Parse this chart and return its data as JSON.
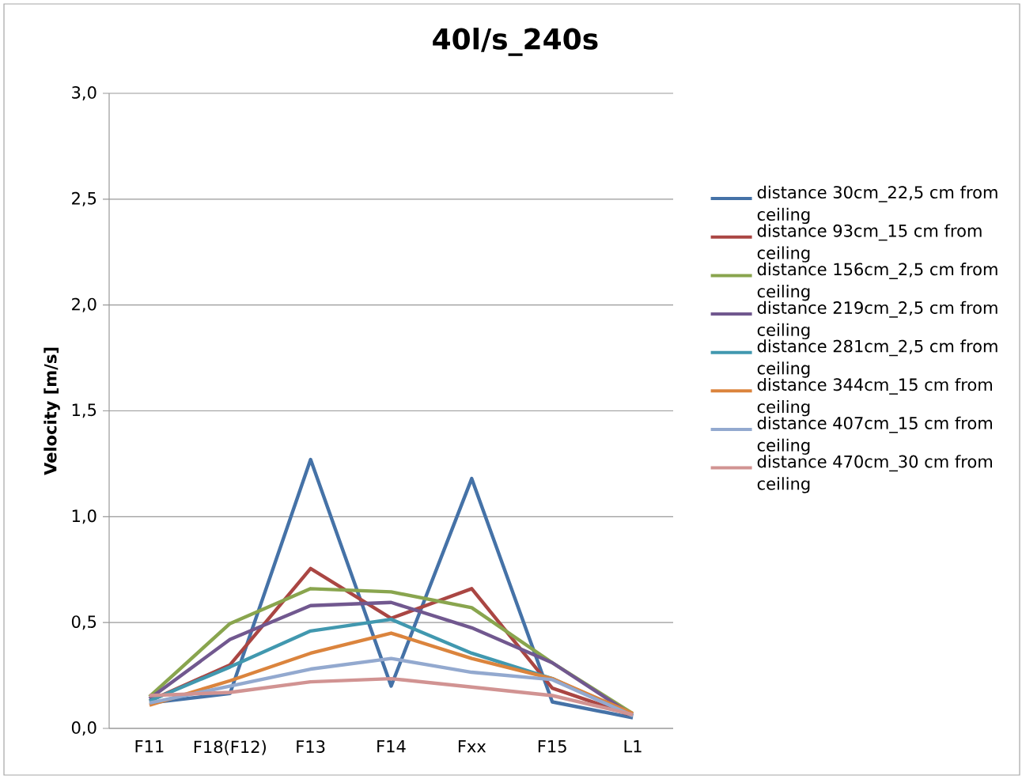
{
  "chart_data": {
    "type": "line",
    "title": "40l/s_240s",
    "ylabel": "Velocity [m/s]",
    "categories": [
      "F11",
      "F18(F12)",
      "F13",
      "F14",
      "Fxx",
      "F15",
      "L1"
    ],
    "ylim": [
      0,
      3
    ],
    "yticks": [
      {
        "value": 0,
        "label": "0,0"
      },
      {
        "value": 0.5,
        "label": "0,5"
      },
      {
        "value": 1,
        "label": "1,0"
      },
      {
        "value": 1.5,
        "label": "1,5"
      },
      {
        "value": 2,
        "label": "2,0"
      },
      {
        "value": 2.5,
        "label": "2,5"
      },
      {
        "value": 3,
        "label": "3,0"
      }
    ],
    "grid": "y",
    "legend": "right",
    "marker": "none",
    "line_style": "solid",
    "series": [
      {
        "name": "distance 30cm_22,5 cm from ceiling",
        "color": "#4572a7",
        "values": [
          0.12,
          0.165,
          1.27,
          0.2,
          1.18,
          0.125,
          0.05
        ]
      },
      {
        "name": "distance 93cm_15 cm from ceiling",
        "color": "#aa4643",
        "values": [
          0.13,
          0.3,
          0.755,
          0.52,
          0.66,
          0.19,
          0.06
        ]
      },
      {
        "name": "distance 156cm_2,5 cm from ceiling",
        "color": "#89a54e",
        "values": [
          0.15,
          0.495,
          0.66,
          0.645,
          0.57,
          0.31,
          0.07
        ]
      },
      {
        "name": "distance 219cm_2,5 cm from ceiling",
        "color": "#71588f",
        "values": [
          0.14,
          0.42,
          0.58,
          0.595,
          0.475,
          0.31,
          0.06
        ]
      },
      {
        "name": "distance 281cm_2,5 cm from ceiling",
        "color": "#4198af",
        "values": [
          0.13,
          0.29,
          0.46,
          0.515,
          0.355,
          0.235,
          0.06
        ]
      },
      {
        "name": "distance 344cm_15 cm from ceiling",
        "color": "#db843d",
        "values": [
          0.11,
          0.225,
          0.355,
          0.45,
          0.33,
          0.235,
          0.07
        ]
      },
      {
        "name": "distance 407cm_15 cm from ceiling",
        "color": "#93a9cf",
        "values": [
          0.12,
          0.2,
          0.28,
          0.33,
          0.265,
          0.23,
          0.06
        ]
      },
      {
        "name": "distance 470cm_30 cm from ceiling",
        "color": "#d19392",
        "values": [
          0.155,
          0.17,
          0.22,
          0.235,
          0.195,
          0.155,
          0.065
        ]
      }
    ]
  }
}
